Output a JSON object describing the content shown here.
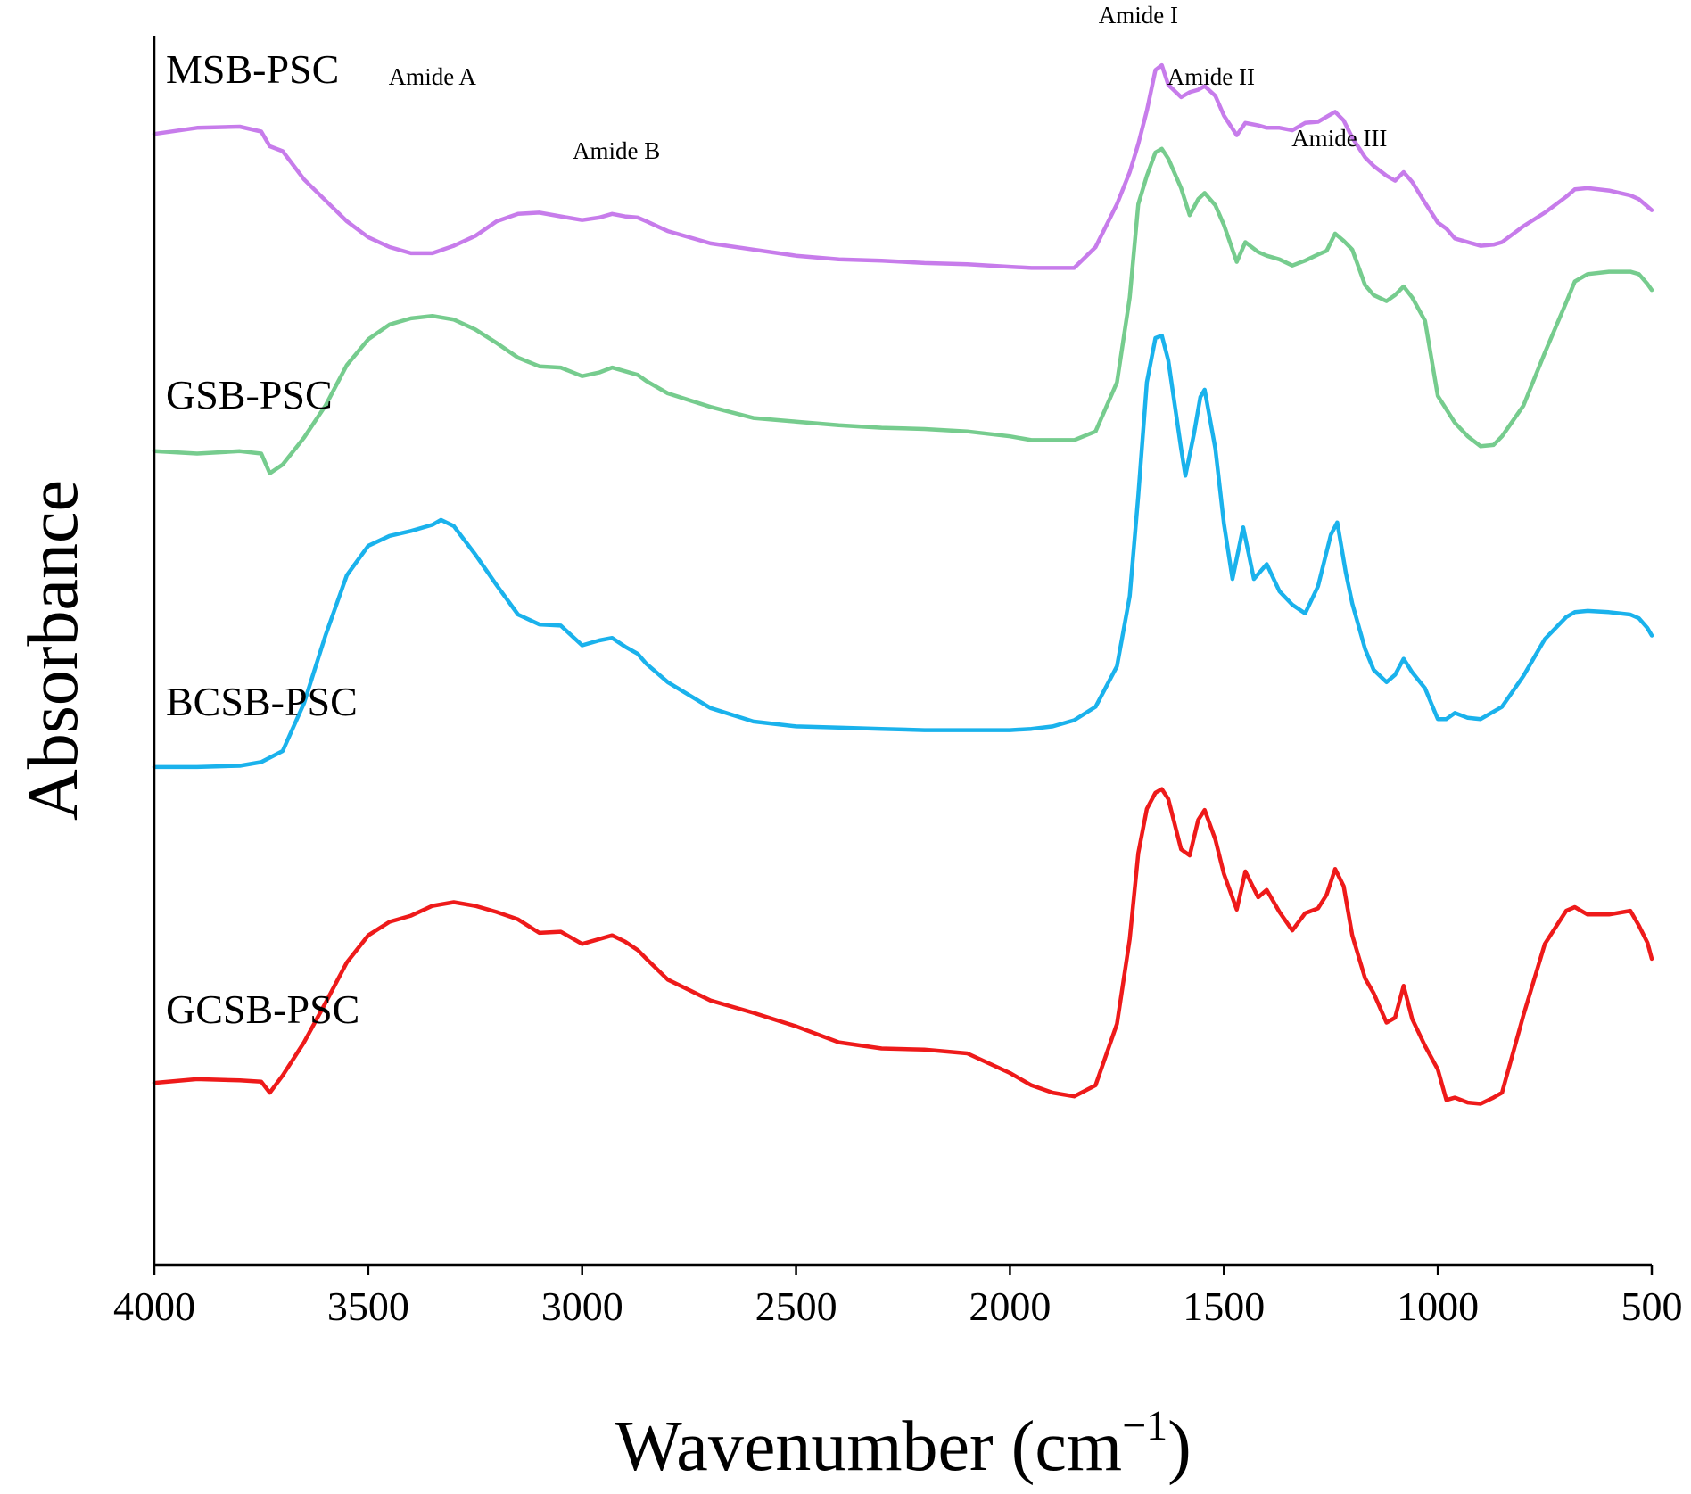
{
  "chart_data": {
    "type": "line",
    "title": "",
    "xlabel": "Wavenumber",
    "xlabel_unit_base": "cm",
    "xlabel_unit_exponent": "−1",
    "ylabel": "Absorbance",
    "xlim": [
      4000,
      500
    ],
    "ylim": [
      0,
      100
    ],
    "x_ticks": [
      4000,
      3500,
      3000,
      2500,
      2000,
      1500,
      1000,
      500
    ],
    "x_tick_labels": [
      "4000",
      "3500",
      "3000",
      "2500",
      "2000",
      "1500",
      "1000",
      "500"
    ],
    "grid": false,
    "y_axis_ticks_visible": false,
    "series": [
      {
        "name": "MSB-PSC",
        "color": "#C77CEB",
        "x": [
          4000,
          3900,
          3800,
          3750,
          3730,
          3700,
          3650,
          3600,
          3550,
          3500,
          3450,
          3400,
          3350,
          3300,
          3250,
          3200,
          3150,
          3100,
          3050,
          3000,
          2960,
          2930,
          2900,
          2870,
          2850,
          2800,
          2700,
          2600,
          2500,
          2400,
          2300,
          2200,
          2100,
          2000,
          1950,
          1900,
          1850,
          1800,
          1750,
          1720,
          1700,
          1680,
          1660,
          1645,
          1630,
          1600,
          1580,
          1560,
          1545,
          1520,
          1500,
          1470,
          1450,
          1420,
          1400,
          1370,
          1340,
          1310,
          1280,
          1260,
          1240,
          1220,
          1200,
          1170,
          1150,
          1120,
          1100,
          1080,
          1060,
          1030,
          1000,
          980,
          960,
          930,
          900,
          870,
          850,
          800,
          750,
          700,
          680,
          650,
          600,
          550,
          530,
          510,
          500
        ],
        "y": [
          92.0,
          92.5,
          92.6,
          92.2,
          91.0,
          90.6,
          88.3,
          86.6,
          84.9,
          83.6,
          82.8,
          82.3,
          82.3,
          82.9,
          83.7,
          84.9,
          85.5,
          85.6,
          85.3,
          85.0,
          85.2,
          85.5,
          85.3,
          85.2,
          84.9,
          84.1,
          83.1,
          82.6,
          82.1,
          81.8,
          81.7,
          81.5,
          81.4,
          81.2,
          81.1,
          81.1,
          81.1,
          82.8,
          86.3,
          88.9,
          91.2,
          93.9,
          97.2,
          97.6,
          96.0,
          95.0,
          95.4,
          95.6,
          95.9,
          95.1,
          93.5,
          91.9,
          92.9,
          92.7,
          92.5,
          92.5,
          92.3,
          92.9,
          93.0,
          93.4,
          93.8,
          93.1,
          91.7,
          90.1,
          89.4,
          88.6,
          88.2,
          88.9,
          88.1,
          86.4,
          84.8,
          84.3,
          83.5,
          83.2,
          82.9,
          83.0,
          83.2,
          84.5,
          85.6,
          86.9,
          87.5,
          87.6,
          87.4,
          87.0,
          86.7,
          86.1,
          85.8
        ]
      },
      {
        "name": "GSB-PSC",
        "color": "#76CC8E",
        "x": [
          4000,
          3900,
          3800,
          3750,
          3730,
          3700,
          3650,
          3600,
          3550,
          3500,
          3450,
          3400,
          3350,
          3300,
          3250,
          3200,
          3150,
          3100,
          3050,
          3000,
          2960,
          2930,
          2900,
          2870,
          2850,
          2800,
          2700,
          2600,
          2500,
          2400,
          2300,
          2200,
          2100,
          2000,
          1950,
          1900,
          1850,
          1800,
          1750,
          1720,
          1700,
          1680,
          1660,
          1645,
          1630,
          1600,
          1580,
          1560,
          1545,
          1520,
          1500,
          1470,
          1450,
          1420,
          1400,
          1370,
          1340,
          1310,
          1280,
          1260,
          1240,
          1220,
          1200,
          1170,
          1150,
          1120,
          1100,
          1080,
          1060,
          1030,
          1000,
          980,
          960,
          930,
          900,
          870,
          850,
          800,
          750,
          700,
          680,
          650,
          600,
          550,
          530,
          510,
          500
        ],
        "y": [
          66.2,
          66.0,
          66.2,
          66.0,
          64.4,
          65.1,
          67.3,
          69.9,
          73.2,
          75.3,
          76.5,
          77.0,
          77.2,
          76.9,
          76.1,
          75.0,
          73.8,
          73.1,
          73.0,
          72.3,
          72.6,
          73.0,
          72.7,
          72.4,
          71.9,
          70.9,
          69.8,
          68.9,
          68.6,
          68.3,
          68.1,
          68.0,
          67.8,
          67.4,
          67.1,
          67.1,
          67.1,
          67.8,
          71.8,
          78.7,
          86.3,
          88.6,
          90.5,
          90.8,
          90.0,
          87.6,
          85.4,
          86.7,
          87.2,
          86.2,
          84.6,
          81.6,
          83.2,
          82.4,
          82.1,
          81.8,
          81.3,
          81.7,
          82.2,
          82.5,
          83.9,
          83.3,
          82.6,
          79.7,
          78.9,
          78.4,
          78.9,
          79.6,
          78.7,
          76.8,
          70.7,
          69.6,
          68.5,
          67.4,
          66.6,
          66.7,
          67.4,
          69.9,
          74.2,
          78.3,
          80.0,
          80.6,
          80.8,
          80.8,
          80.6,
          79.8,
          79.3
        ]
      },
      {
        "name": "BCSB-PSC",
        "color": "#1AB2EC",
        "x": [
          4000,
          3900,
          3800,
          3750,
          3700,
          3650,
          3600,
          3550,
          3500,
          3450,
          3400,
          3350,
          3330,
          3300,
          3250,
          3200,
          3150,
          3100,
          3050,
          3000,
          2960,
          2930,
          2900,
          2870,
          2850,
          2800,
          2700,
          2600,
          2500,
          2400,
          2300,
          2200,
          2100,
          2000,
          1950,
          1900,
          1850,
          1800,
          1750,
          1720,
          1700,
          1680,
          1660,
          1645,
          1630,
          1600,
          1590,
          1570,
          1555,
          1545,
          1520,
          1500,
          1480,
          1455,
          1430,
          1400,
          1370,
          1340,
          1310,
          1280,
          1250,
          1235,
          1215,
          1200,
          1170,
          1150,
          1120,
          1100,
          1080,
          1060,
          1030,
          1000,
          980,
          960,
          930,
          900,
          870,
          850,
          800,
          750,
          700,
          680,
          650,
          600,
          550,
          530,
          510,
          500
        ],
        "y": [
          40.5,
          40.5,
          40.6,
          40.9,
          41.8,
          45.7,
          51.2,
          56.1,
          58.5,
          59.3,
          59.7,
          60.2,
          60.6,
          60.1,
          57.8,
          55.3,
          52.9,
          52.1,
          52.0,
          50.4,
          50.8,
          51.0,
          50.3,
          49.7,
          48.9,
          47.4,
          45.3,
          44.2,
          43.8,
          43.7,
          43.6,
          43.5,
          43.5,
          43.5,
          43.6,
          43.8,
          44.3,
          45.4,
          48.7,
          54.4,
          62.6,
          71.8,
          75.4,
          75.6,
          73.6,
          66.4,
          64.2,
          67.6,
          70.6,
          71.2,
          66.4,
          60.3,
          55.8,
          60.0,
          55.8,
          57.0,
          54.8,
          53.7,
          53.0,
          55.2,
          59.4,
          60.4,
          56.3,
          53.8,
          50.1,
          48.4,
          47.4,
          48.0,
          49.3,
          48.2,
          46.9,
          44.4,
          44.4,
          44.9,
          44.5,
          44.4,
          45.0,
          45.4,
          47.9,
          50.9,
          52.7,
          53.1,
          53.2,
          53.1,
          52.9,
          52.6,
          51.8,
          51.2
        ]
      },
      {
        "name": "GCSB-PSC",
        "color": "#EE1A1A",
        "x": [
          4000,
          3900,
          3800,
          3750,
          3730,
          3700,
          3650,
          3600,
          3550,
          3500,
          3450,
          3400,
          3350,
          3300,
          3250,
          3200,
          3150,
          3100,
          3050,
          3000,
          2960,
          2930,
          2900,
          2870,
          2850,
          2800,
          2700,
          2600,
          2500,
          2400,
          2300,
          2200,
          2100,
          2000,
          1950,
          1900,
          1850,
          1800,
          1750,
          1720,
          1700,
          1680,
          1660,
          1645,
          1630,
          1600,
          1580,
          1560,
          1545,
          1520,
          1500,
          1470,
          1450,
          1420,
          1400,
          1370,
          1340,
          1310,
          1280,
          1260,
          1240,
          1220,
          1200,
          1170,
          1150,
          1120,
          1100,
          1080,
          1060,
          1030,
          1000,
          980,
          960,
          930,
          900,
          870,
          850,
          800,
          750,
          700,
          680,
          650,
          600,
          550,
          530,
          510,
          500
        ],
        "y": [
          14.8,
          15.1,
          15.0,
          14.9,
          14.0,
          15.4,
          18.1,
          21.3,
          24.6,
          26.8,
          27.9,
          28.4,
          29.2,
          29.5,
          29.2,
          28.7,
          28.1,
          27.0,
          27.1,
          26.1,
          26.5,
          26.8,
          26.3,
          25.6,
          24.9,
          23.2,
          21.5,
          20.5,
          19.4,
          18.1,
          17.6,
          17.5,
          17.2,
          15.6,
          14.6,
          14.0,
          13.7,
          14.6,
          19.6,
          26.5,
          33.5,
          37.1,
          38.4,
          38.7,
          37.9,
          33.8,
          33.3,
          36.2,
          37.0,
          34.6,
          31.8,
          28.9,
          32.0,
          29.9,
          30.5,
          28.7,
          27.2,
          28.6,
          29.0,
          30.1,
          32.2,
          30.8,
          26.8,
          23.3,
          22.1,
          19.7,
          20.1,
          22.7,
          20.0,
          17.8,
          15.9,
          13.4,
          13.6,
          13.2,
          13.1,
          13.6,
          14.0,
          20.3,
          26.1,
          28.8,
          29.1,
          28.5,
          28.5,
          28.8,
          27.6,
          26.2,
          24.9
        ]
      }
    ],
    "annotations": [
      {
        "text": "Amide A",
        "x": 3350,
        "y": 96
      },
      {
        "text": "Amide B",
        "x": 2920,
        "y": 90
      },
      {
        "text": "Amide I",
        "x": 1700,
        "y": 101
      },
      {
        "text": "Amide II",
        "x": 1530,
        "y": 96
      },
      {
        "text": "Amide III",
        "x": 1230,
        "y": 91
      }
    ]
  }
}
